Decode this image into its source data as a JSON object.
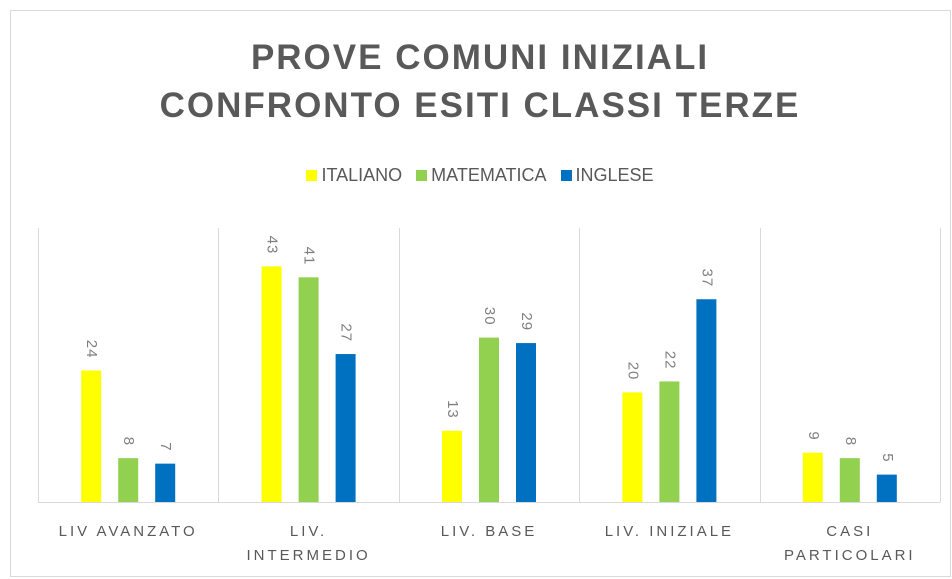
{
  "chart_data": {
    "type": "bar",
    "title": "PROVE COMUNI INIZIALI\nCONFRONTO ESITI CLASSI TERZE",
    "categories": [
      "LIV AVANZATO",
      "LIV.\nINTERMEDIO",
      "LIV. BASE",
      "LIV. INIZIALE",
      "CASI\nPARTICOLARI"
    ],
    "series": [
      {
        "name": "ITALIANO",
        "color": "#ffff00",
        "values": [
          24,
          43,
          13,
          20,
          9
        ]
      },
      {
        "name": "MATEMATICA",
        "color": "#92d050",
        "values": [
          8,
          41,
          30,
          22,
          8
        ]
      },
      {
        "name": "INGLESE",
        "color": "#0070c0",
        "values": [
          7,
          27,
          29,
          37,
          5
        ]
      }
    ],
    "ylim": [
      0,
      50
    ],
    "legend": "top"
  }
}
